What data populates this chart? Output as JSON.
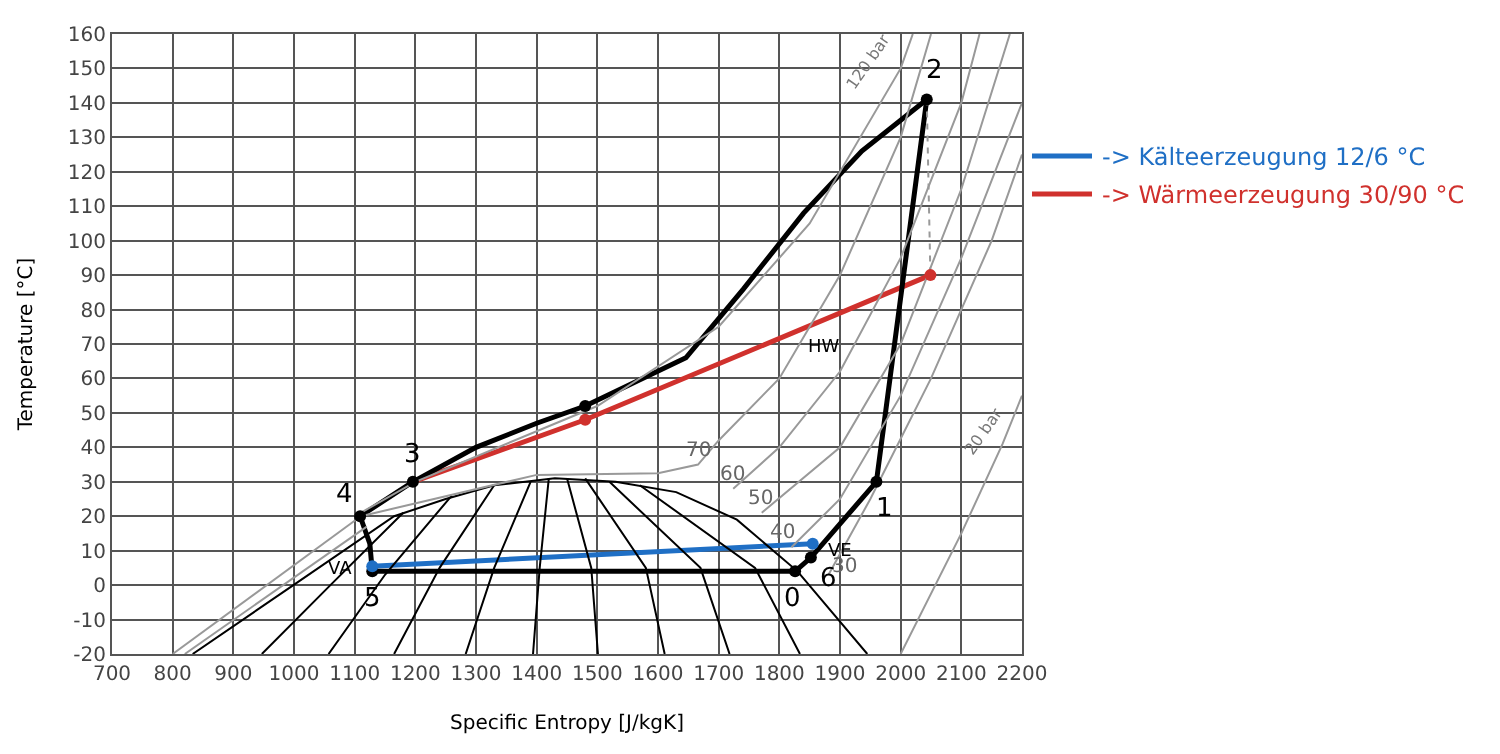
{
  "chart_data": {
    "type": "line",
    "xlabel": "Specific Entropy [J/kgK]",
    "ylabel": "Temperature [°C]",
    "xlim": [
      700,
      2200
    ],
    "ylim": [
      -20,
      160
    ],
    "xticks": [
      700,
      800,
      900,
      1000,
      1100,
      1200,
      1300,
      1400,
      1500,
      1600,
      1700,
      1800,
      1900,
      2000,
      2100,
      2200
    ],
    "yticks": [
      -20,
      -10,
      0,
      10,
      20,
      30,
      40,
      50,
      60,
      70,
      80,
      90,
      100,
      110,
      120,
      130,
      140,
      150,
      160
    ],
    "grid": true,
    "legend": "right",
    "line_style": "solid",
    "series": [
      {
        "name": "-> Kälteerzeugung 12/6 °C",
        "color": "#1f6fc5",
        "x": [
          1129,
          1855
        ],
        "values": [
          5.5,
          12
        ]
      },
      {
        "name": "-> Wärmeerzeugung 30/90 °C",
        "color": "#d0312d",
        "x": [
          1196,
          1480,
          2049
        ],
        "values": [
          30,
          48,
          90
        ]
      },
      {
        "color": "#000000",
        "x": [
          1826,
          1852,
          1960,
          2043
        ],
        "values": [
          4,
          8,
          30,
          141
        ]
      },
      {
        "color": "#000000",
        "x": [
          1109,
          1196,
          1300,
          1400,
          1480,
          1646,
          1741,
          1840,
          1936,
          2043
        ],
        "values": [
          20,
          30,
          40,
          47,
          52,
          66,
          86,
          108,
          126,
          141
        ]
      },
      {
        "color": "#000000",
        "x": [
          1109,
          1125,
          1129
        ],
        "values": [
          20,
          12,
          4
        ]
      },
      {
        "color": "#000000",
        "x": [
          1129,
          1826
        ],
        "values": [
          4,
          4
        ]
      },
      {
        "color": "#999999",
        "line_style": "dotted",
        "x": [
          2043,
          2049
        ],
        "values": [
          141,
          90
        ]
      },
      {
        "color": "#000000",
        "x": [
          833,
          999,
          1165,
          1250,
          1330,
          1430,
          1530,
          1630,
          1730,
          1830,
          1945
        ],
        "values": [
          -20,
          0,
          20,
          25,
          29,
          31,
          30,
          27,
          19,
          4,
          -20
        ]
      },
      {
        "color": "#000000",
        "x": [
          947,
          1060,
          1180
        ],
        "values": [
          -20,
          0,
          21
        ]
      },
      {
        "color": "#000000",
        "x": [
          1057,
          1150,
          1260
        ],
        "values": [
          -20,
          3,
          26
        ]
      },
      {
        "color": "#000000",
        "x": [
          1165,
          1240,
          1330
        ],
        "values": [
          -20,
          5,
          29
        ]
      },
      {
        "color": "#000000",
        "x": [
          1283,
          1330,
          1390
        ],
        "values": [
          -20,
          5,
          30
        ]
      },
      {
        "color": "#000000",
        "x": [
          1394,
          1405,
          1420
        ],
        "values": [
          -20,
          5,
          31
        ]
      },
      {
        "color": "#000000",
        "x": [
          1450,
          1490,
          1501
        ],
        "values": [
          31,
          5,
          -20
        ]
      },
      {
        "color": "#000000",
        "x": [
          1480,
          1580,
          1611
        ],
        "values": [
          31,
          5,
          -20
        ]
      },
      {
        "color": "#000000",
        "x": [
          1520,
          1670,
          1718
        ],
        "values": [
          30,
          5,
          -20
        ]
      },
      {
        "color": "#000000",
        "x": [
          1570,
          1760,
          1834
        ],
        "values": [
          29,
          5,
          -20
        ]
      },
      {
        "color": "#999999",
        "x": [
          800,
          1110
        ],
        "values": [
          -20,
          20
        ]
      },
      {
        "color": "#999999",
        "x": [
          820,
          1120
        ],
        "values": [
          -20,
          17
        ]
      },
      {
        "color": "#999999",
        "x": [
          1110,
          1200,
          1500,
          1700,
          1850,
          2000,
          2020
        ],
        "values": [
          21,
          30,
          52,
          75,
          105,
          150,
          160
        ]
      },
      {
        "color": "#999999",
        "x": [
          1110,
          1400,
          1600,
          1666,
          1700,
          1800,
          1900,
          2000,
          2050
        ],
        "values": [
          20,
          32,
          32.5,
          35,
          42,
          60,
          90,
          130,
          160
        ]
      },
      {
        "color": "#999999",
        "x": [
          1724,
          1800,
          1900,
          2000,
          2100,
          2130
        ],
        "values": [
          28,
          40,
          62,
          95,
          140,
          160
        ]
      },
      {
        "color": "#999999",
        "x": [
          1771,
          1900,
          2000,
          2100,
          2180
        ],
        "values": [
          21,
          40,
          70,
          115,
          160
        ]
      },
      {
        "color": "#999999",
        "x": [
          1820,
          1900,
          2000,
          2100,
          2200
        ],
        "values": [
          11,
          25,
          55,
          95,
          140
        ]
      },
      {
        "color": "#999999",
        "x": [
          1881,
          1950,
          2050,
          2150,
          2200
        ],
        "values": [
          3,
          25,
          60,
          100,
          125
        ]
      },
      {
        "color": "#999999",
        "x": [
          2000,
          2100,
          2168,
          2200
        ],
        "values": [
          -20,
          15,
          41,
          55
        ]
      },
      {
        "type": "scatter",
        "marker": "circle",
        "color": "#000000",
        "x": [
          1109,
          1129,
          1196,
          1480,
          1826,
          1852,
          1960,
          2043
        ],
        "values": [
          20,
          4,
          30,
          52,
          4,
          8,
          30,
          141
        ]
      },
      {
        "type": "scatter",
        "marker": "circle",
        "color": "#d0312d",
        "x": [
          1480,
          2049
        ],
        "values": [
          48,
          90
        ]
      },
      {
        "type": "scatter",
        "marker": "circle",
        "color": "#1f6fc5",
        "x": [
          1129,
          1855
        ],
        "values": [
          5.5,
          12
        ]
      }
    ],
    "annotations": [
      {
        "text": "0",
        "x": 1826,
        "y": 4
      },
      {
        "text": "1",
        "x": 1960,
        "y": 30
      },
      {
        "text": "2",
        "x": 2043,
        "y": 141
      },
      {
        "text": "3",
        "x": 1196,
        "y": 30
      },
      {
        "text": "4",
        "x": 1109,
        "y": 20
      },
      {
        "text": "5",
        "x": 1129,
        "y": 4
      },
      {
        "text": "6",
        "x": 1852,
        "y": 8
      },
      {
        "text": "VA",
        "x": 1129,
        "y": 5.5
      },
      {
        "text": "VE",
        "x": 1855,
        "y": 12
      },
      {
        "text": "HW",
        "x": 1872,
        "y": 77
      },
      {
        "text": "70",
        "x": 1666,
        "y": 35
      },
      {
        "text": "60",
        "x": 1724,
        "y": 28
      },
      {
        "text": "50",
        "x": 1771,
        "y": 21
      },
      {
        "text": "40",
        "x": 1820,
        "y": 11
      },
      {
        "text": "30",
        "x": 1881,
        "y": 3
      },
      {
        "text": "120 bar",
        "x": 2000,
        "y": 150
      },
      {
        "text": "20 bar",
        "x": 2168,
        "y": 41
      }
    ]
  }
}
